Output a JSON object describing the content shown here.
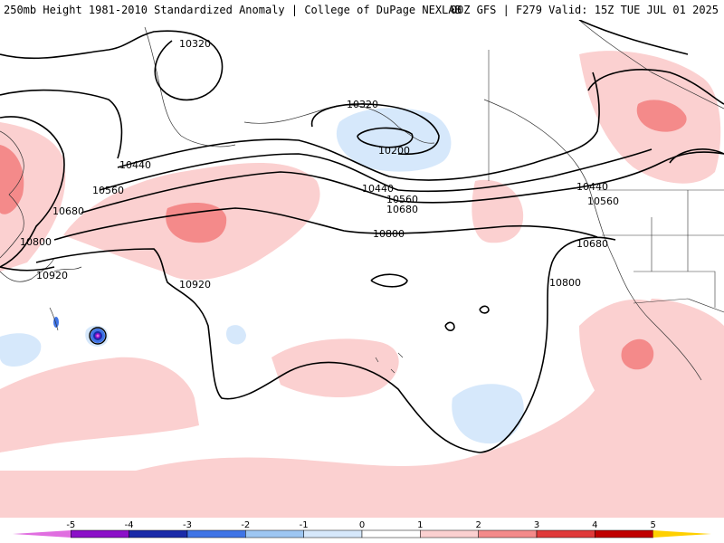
{
  "header": {
    "title": "250mb Height 1981-2010 Standardized Anomaly | College of DuPage NEXLAB",
    "run_info": "00Z GFS | F279 Valid: 15Z TUE JUL 01 2025"
  },
  "contours": {
    "labels": [
      "10320",
      "10440",
      "10560",
      "10680",
      "10800",
      "10920",
      "10200"
    ]
  },
  "colorbar": {
    "ticks": [
      "-5",
      "-4",
      "-3",
      "-2",
      "-1",
      "0",
      "1",
      "2",
      "3",
      "4",
      "5"
    ],
    "colors": {
      "m5": "#e06ee0",
      "m4": "#8b10c8",
      "m3": "#1a2aa8",
      "m2": "#3f74e6",
      "m1": "#9dc6f2",
      "m0": "#d6e8fb",
      "p0": "#ffffff",
      "p1": "#fbd0d0",
      "p2": "#f48a8a",
      "p3": "#e03a3a",
      "p4": "#c00000",
      "p5": "#ff9000",
      "p6": "#ffd000"
    }
  }
}
